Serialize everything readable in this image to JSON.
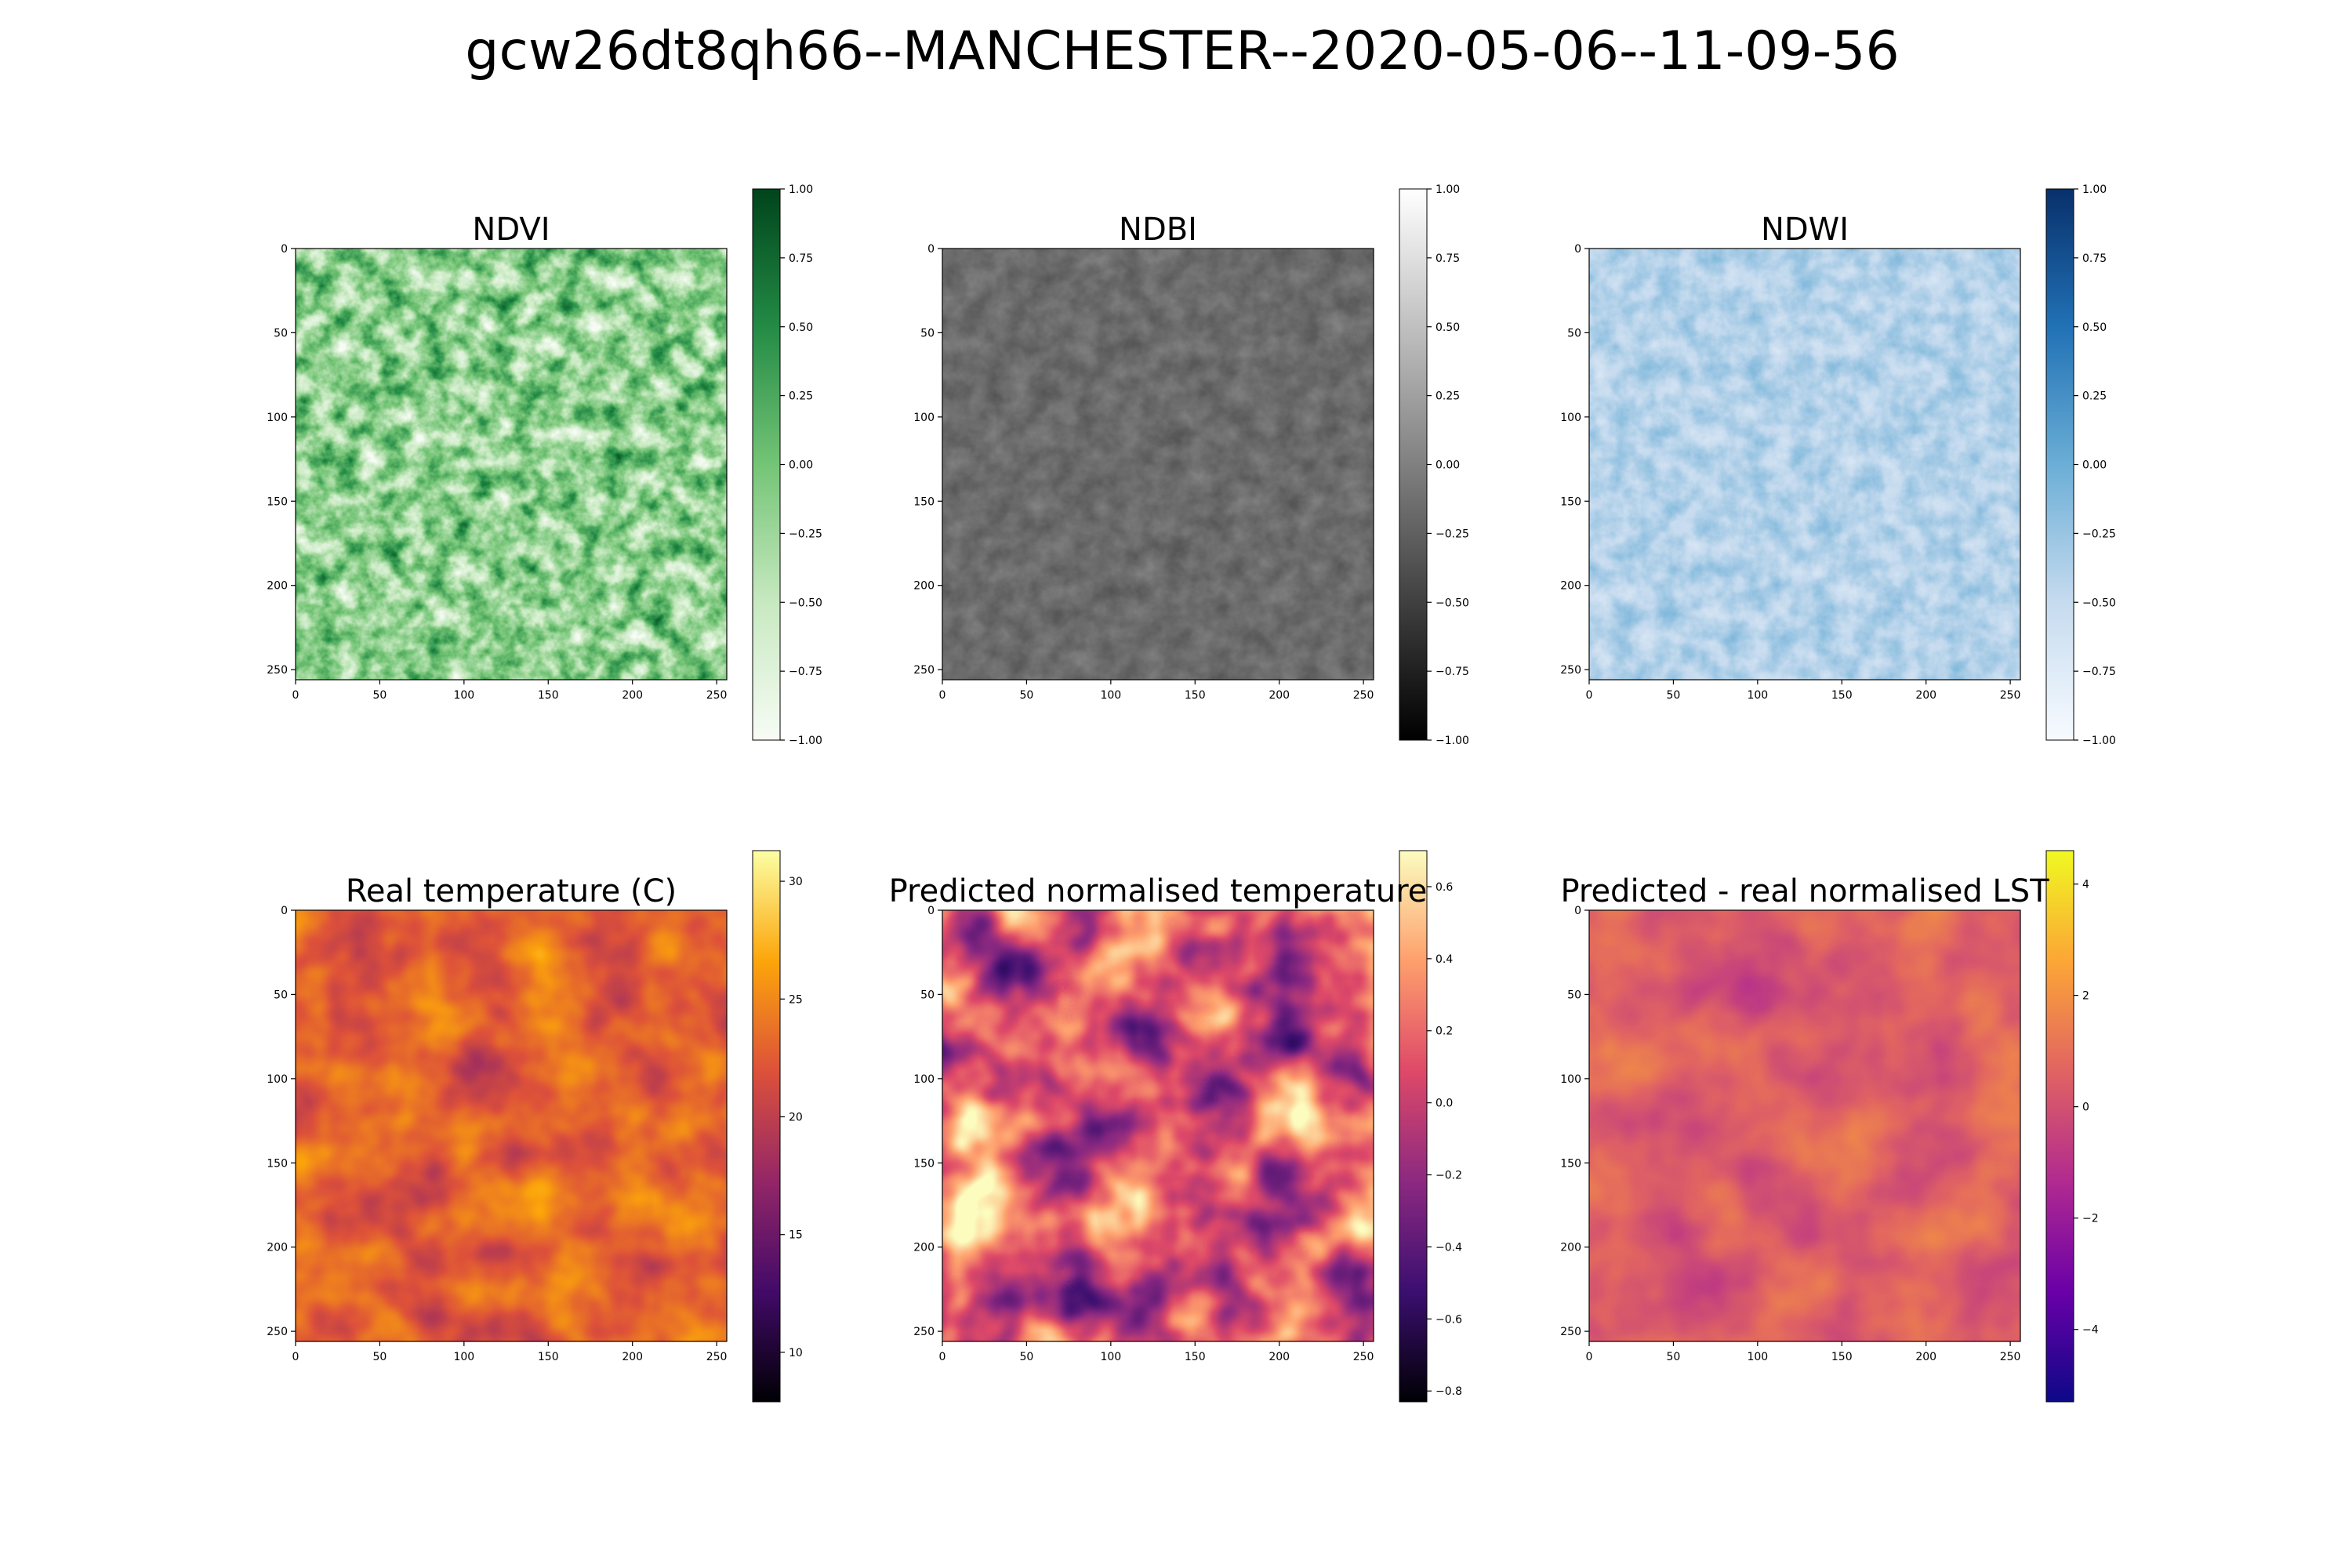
{
  "figure": {
    "title": "gcw26dt8qh66--MANCHESTER--2020-05-06--11-09-56"
  },
  "chart_data": [
    {
      "type": "heatmap",
      "title": "NDVI",
      "colormap": "Greens",
      "x_ticks": [
        "0",
        "50",
        "100",
        "150",
        "200",
        "250"
      ],
      "y_ticks": [
        "0",
        "50",
        "100",
        "150",
        "200",
        "250"
      ],
      "xlim": [
        0,
        256
      ],
      "ylim": [
        256,
        0
      ],
      "colorbar_range": [
        -1.0,
        1.0
      ],
      "colorbar_ticks": [
        "1.00",
        "0.75",
        "0.50",
        "0.25",
        "0.00",
        "−0.25",
        "−0.50",
        "−0.75",
        "−1.00"
      ]
    },
    {
      "type": "heatmap",
      "title": "NDBI",
      "colormap": "Greys_r",
      "x_ticks": [
        "0",
        "50",
        "100",
        "150",
        "200",
        "250"
      ],
      "y_ticks": [
        "0",
        "50",
        "100",
        "150",
        "200",
        "250"
      ],
      "xlim": [
        0,
        256
      ],
      "ylim": [
        256,
        0
      ],
      "colorbar_range": [
        -1.0,
        1.0
      ],
      "colorbar_ticks": [
        "1.00",
        "0.75",
        "0.50",
        "0.25",
        "0.00",
        "−0.25",
        "−0.50",
        "−0.75",
        "−1.00"
      ]
    },
    {
      "type": "heatmap",
      "title": "NDWI",
      "colormap": "Blues",
      "x_ticks": [
        "0",
        "50",
        "100",
        "150",
        "200",
        "250"
      ],
      "y_ticks": [
        "0",
        "50",
        "100",
        "150",
        "200",
        "250"
      ],
      "xlim": [
        0,
        256
      ],
      "ylim": [
        256,
        0
      ],
      "colorbar_range": [
        -1.0,
        1.0
      ],
      "colorbar_ticks": [
        "1.00",
        "0.75",
        "0.50",
        "0.25",
        "0.00",
        "−0.25",
        "−0.50",
        "−0.75",
        "−1.00"
      ]
    },
    {
      "type": "heatmap",
      "title": "Real temperature (C)",
      "colormap": "inferno",
      "x_ticks": [
        "0",
        "50",
        "100",
        "150",
        "200",
        "250"
      ],
      "y_ticks": [
        "0",
        "50",
        "100",
        "150",
        "200",
        "250"
      ],
      "xlim": [
        0,
        256
      ],
      "ylim": [
        256,
        0
      ],
      "colorbar_range": [
        7.9,
        31.3
      ],
      "colorbar_ticks": [
        "30",
        "25",
        "20",
        "15",
        "10"
      ]
    },
    {
      "type": "heatmap",
      "title": "Predicted normalised temperature",
      "colormap": "magma",
      "x_ticks": [
        "0",
        "50",
        "100",
        "150",
        "200",
        "250"
      ],
      "y_ticks": [
        "0",
        "50",
        "100",
        "150",
        "200",
        "250"
      ],
      "xlim": [
        0,
        256
      ],
      "ylim": [
        256,
        0
      ],
      "colorbar_range": [
        -0.83,
        0.7
      ],
      "colorbar_ticks": [
        "0.6",
        "0.4",
        "0.2",
        "0.0",
        "−0.2",
        "−0.4",
        "−0.6",
        "−0.8"
      ]
    },
    {
      "type": "heatmap",
      "title": "Predicted - real normalised LST",
      "colormap": "plasma",
      "x_ticks": [
        "0",
        "50",
        "100",
        "150",
        "200",
        "250"
      ],
      "y_ticks": [
        "0",
        "50",
        "100",
        "150",
        "200",
        "250"
      ],
      "xlim": [
        0,
        256
      ],
      "ylim": [
        256,
        0
      ],
      "colorbar_range": [
        -5.3,
        4.6
      ],
      "colorbar_ticks": [
        "4",
        "2",
        "0",
        "−2",
        "−4"
      ]
    }
  ]
}
